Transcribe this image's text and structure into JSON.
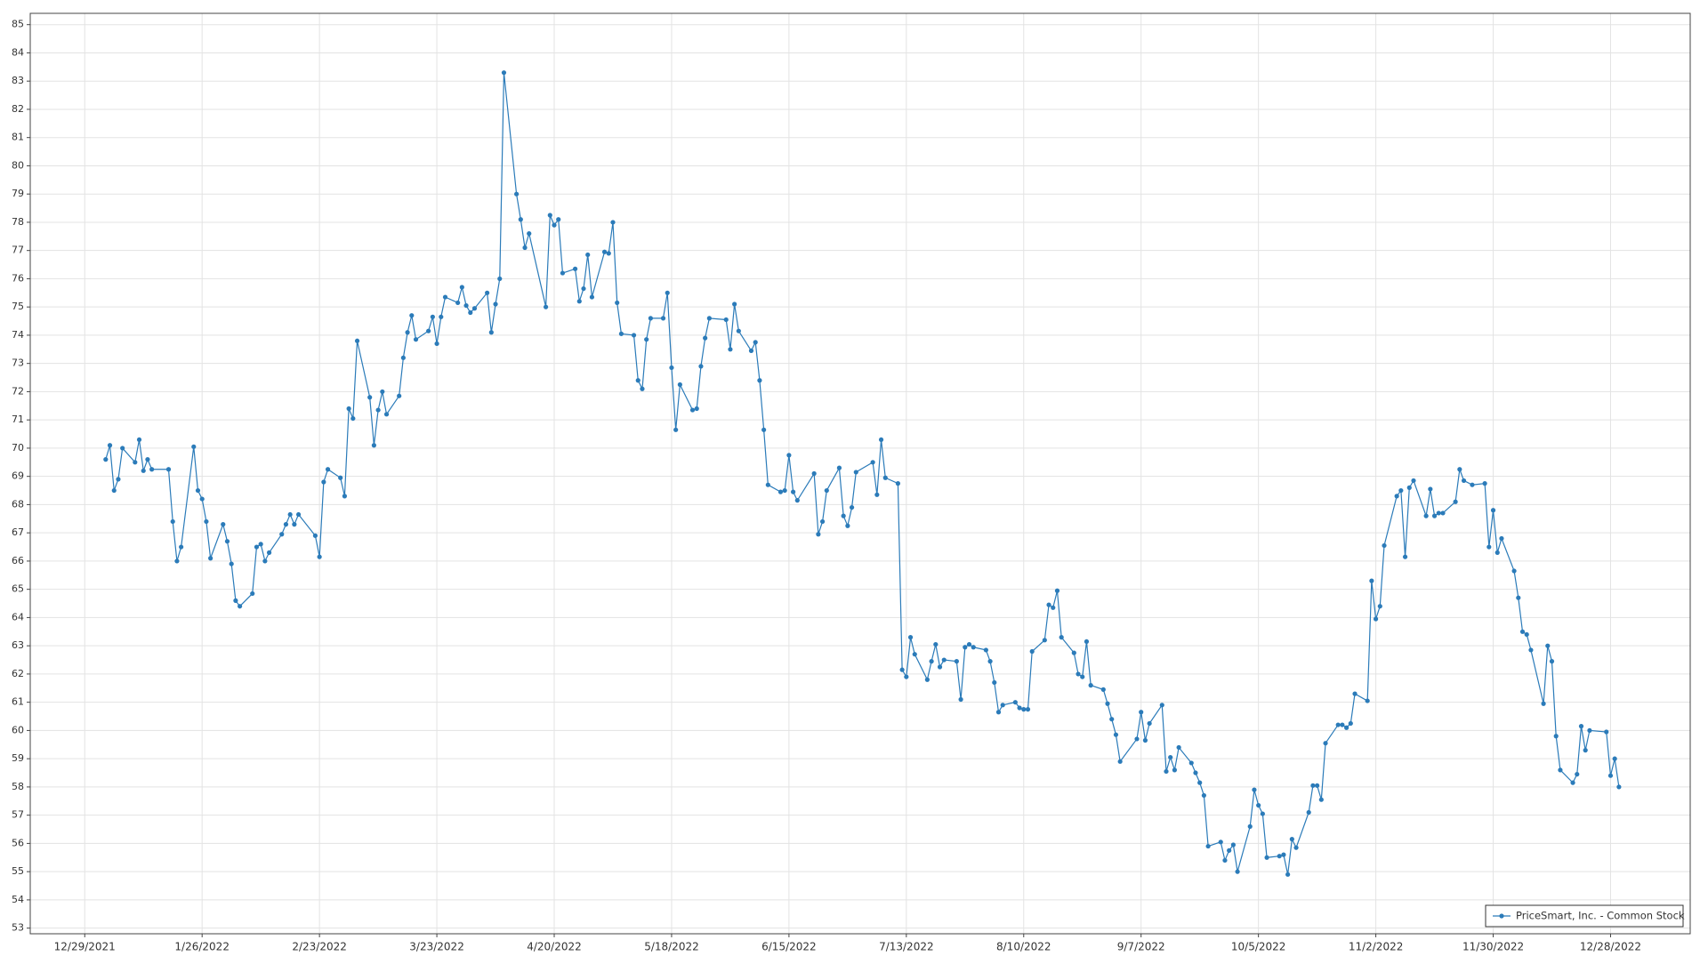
{
  "chart_data": {
    "type": "line",
    "x": [
      "1/3/2022",
      "1/4/2022",
      "1/5/2022",
      "1/6/2022",
      "1/7/2022",
      "1/10/2022",
      "1/11/2022",
      "1/12/2022",
      "1/13/2022",
      "1/14/2022",
      "1/18/2022",
      "1/19/2022",
      "1/20/2022",
      "1/21/2022",
      "1/24/2022",
      "1/25/2022",
      "1/26/2022",
      "1/27/2022",
      "1/28/2022",
      "1/31/2022",
      "2/1/2022",
      "2/2/2022",
      "2/3/2022",
      "2/4/2022",
      "2/7/2022",
      "2/8/2022",
      "2/9/2022",
      "2/10/2022",
      "2/11/2022",
      "2/14/2022",
      "2/15/2022",
      "2/16/2022",
      "2/17/2022",
      "2/18/2022",
      "2/22/2022",
      "2/23/2022",
      "2/24/2022",
      "2/25/2022",
      "2/28/2022",
      "3/1/2022",
      "3/2/2022",
      "3/3/2022",
      "3/4/2022",
      "3/7/2022",
      "3/8/2022",
      "3/9/2022",
      "3/10/2022",
      "3/11/2022",
      "3/14/2022",
      "3/15/2022",
      "3/16/2022",
      "3/17/2022",
      "3/18/2022",
      "3/21/2022",
      "3/22/2022",
      "3/23/2022",
      "3/24/2022",
      "3/25/2022",
      "3/28/2022",
      "3/29/2022",
      "3/30/2022",
      "3/31/2022",
      "4/1/2022",
      "4/4/2022",
      "4/5/2022",
      "4/6/2022",
      "4/7/2022",
      "4/8/2022",
      "4/11/2022",
      "4/12/2022",
      "4/13/2022",
      "4/14/2022",
      "4/18/2022",
      "4/19/2022",
      "4/20/2022",
      "4/21/2022",
      "4/22/2022",
      "4/25/2022",
      "4/26/2022",
      "4/27/2022",
      "4/28/2022",
      "4/29/2022",
      "5/2/2022",
      "5/3/2022",
      "5/4/2022",
      "5/5/2022",
      "5/6/2022",
      "5/9/2022",
      "5/10/2022",
      "5/11/2022",
      "5/12/2022",
      "5/13/2022",
      "5/16/2022",
      "5/17/2022",
      "5/18/2022",
      "5/19/2022",
      "5/20/2022",
      "5/23/2022",
      "5/24/2022",
      "5/25/2022",
      "5/26/2022",
      "5/27/2022",
      "5/31/2022",
      "6/1/2022",
      "6/2/2022",
      "6/3/2022",
      "6/6/2022",
      "6/7/2022",
      "6/8/2022",
      "6/9/2022",
      "6/10/2022",
      "6/13/2022",
      "6/14/2022",
      "6/15/2022",
      "6/16/2022",
      "6/17/2022",
      "6/21/2022",
      "6/22/2022",
      "6/23/2022",
      "6/24/2022",
      "6/27/2022",
      "6/28/2022",
      "6/29/2022",
      "6/30/2022",
      "7/1/2022",
      "7/5/2022",
      "7/6/2022",
      "7/7/2022",
      "7/8/2022",
      "7/11/2022",
      "7/12/2022",
      "7/13/2022",
      "7/14/2022",
      "7/15/2022",
      "7/18/2022",
      "7/19/2022",
      "7/20/2022",
      "7/21/2022",
      "7/22/2022",
      "7/25/2022",
      "7/26/2022",
      "7/27/2022",
      "7/28/2022",
      "7/29/2022",
      "8/1/2022",
      "8/2/2022",
      "8/3/2022",
      "8/4/2022",
      "8/5/2022",
      "8/8/2022",
      "8/9/2022",
      "8/10/2022",
      "8/11/2022",
      "8/12/2022",
      "8/15/2022",
      "8/16/2022",
      "8/17/2022",
      "8/18/2022",
      "8/19/2022",
      "8/22/2022",
      "8/23/2022",
      "8/24/2022",
      "8/25/2022",
      "8/26/2022",
      "8/29/2022",
      "8/30/2022",
      "8/31/2022",
      "9/1/2022",
      "9/2/2022",
      "9/6/2022",
      "9/7/2022",
      "9/8/2022",
      "9/9/2022",
      "9/12/2022",
      "9/13/2022",
      "9/14/2022",
      "9/15/2022",
      "9/16/2022",
      "9/19/2022",
      "9/20/2022",
      "9/21/2022",
      "9/22/2022",
      "9/23/2022",
      "9/26/2022",
      "9/27/2022",
      "9/28/2022",
      "9/29/2022",
      "9/30/2022",
      "10/3/2022",
      "10/4/2022",
      "10/5/2022",
      "10/6/2022",
      "10/7/2022",
      "10/10/2022",
      "10/11/2022",
      "10/12/2022",
      "10/13/2022",
      "10/14/2022",
      "10/17/2022",
      "10/18/2022",
      "10/19/2022",
      "10/20/2022",
      "10/21/2022",
      "10/24/2022",
      "10/25/2022",
      "10/26/2022",
      "10/27/2022",
      "10/28/2022",
      "10/31/2022",
      "11/1/2022",
      "11/2/2022",
      "11/3/2022",
      "11/4/2022",
      "11/7/2022",
      "11/8/2022",
      "11/9/2022",
      "11/10/2022",
      "11/11/2022",
      "11/14/2022",
      "11/15/2022",
      "11/16/2022",
      "11/17/2022",
      "11/18/2022",
      "11/21/2022",
      "11/22/2022",
      "11/23/2022",
      "11/25/2022",
      "11/28/2022",
      "11/29/2022",
      "11/30/2022",
      "12/1/2022",
      "12/2/2022",
      "12/5/2022",
      "12/6/2022",
      "12/7/2022",
      "12/8/2022",
      "12/9/2022",
      "12/12/2022",
      "12/13/2022",
      "12/14/2022",
      "12/15/2022",
      "12/16/2022",
      "12/19/2022",
      "12/20/2022",
      "12/21/2022",
      "12/22/2022",
      "12/23/2022",
      "12/27/2022",
      "12/28/2022",
      "12/29/2022",
      "12/30/2022"
    ],
    "series": [
      {
        "name": "PriceSmart, Inc. - Common Stock",
        "color": "#2b7bb9",
        "values": [
          69.6,
          70.1,
          68.5,
          68.9,
          70.0,
          69.5,
          70.3,
          69.2,
          69.6,
          69.25,
          69.25,
          67.4,
          66.0,
          66.5,
          70.05,
          68.5,
          68.2,
          67.4,
          66.1,
          67.3,
          66.7,
          65.9,
          64.6,
          64.4,
          64.85,
          66.5,
          66.6,
          66.0,
          66.3,
          66.95,
          67.3,
          67.65,
          67.3,
          67.65,
          66.9,
          66.15,
          68.8,
          69.25,
          68.95,
          68.3,
          71.4,
          71.05,
          73.8,
          71.8,
          70.1,
          71.35,
          72.0,
          71.2,
          71.85,
          73.2,
          74.1,
          74.7,
          73.85,
          74.15,
          74.65,
          73.7,
          74.65,
          75.35,
          75.15,
          75.7,
          75.05,
          74.8,
          74.95,
          75.5,
          74.1,
          75.1,
          76.0,
          83.3,
          79.0,
          78.1,
          77.1,
          77.6,
          75.0,
          78.25,
          77.9,
          78.1,
          76.2,
          76.35,
          75.2,
          75.65,
          76.85,
          75.35,
          76.95,
          76.9,
          78.0,
          75.15,
          74.05,
          74.0,
          72.4,
          72.1,
          73.85,
          74.6,
          74.6,
          75.5,
          72.85,
          70.65,
          72.25,
          71.35,
          71.4,
          72.9,
          73.9,
          74.6,
          74.55,
          73.5,
          75.1,
          74.15,
          73.45,
          73.75,
          72.4,
          70.65,
          68.7,
          68.45,
          68.5,
          69.75,
          68.45,
          68.15,
          69.1,
          66.95,
          67.4,
          68.5,
          69.3,
          67.6,
          67.25,
          67.9,
          69.15,
          69.5,
          68.35,
          70.3,
          68.95,
          68.75,
          62.15,
          61.9,
          63.3,
          62.7,
          61.8,
          62.45,
          63.05,
          62.25,
          62.5,
          62.45,
          61.1,
          62.95,
          63.05,
          62.95,
          62.85,
          62.45,
          61.7,
          60.65,
          60.9,
          61.0,
          60.8,
          60.75,
          60.75,
          62.8,
          63.2,
          64.45,
          64.35,
          64.95,
          63.3,
          62.75,
          62.0,
          61.9,
          63.15,
          61.6,
          61.45,
          60.95,
          60.4,
          59.85,
          58.9,
          59.7,
          60.65,
          59.65,
          60.25,
          60.9,
          58.55,
          59.05,
          58.6,
          59.4,
          58.85,
          58.5,
          58.15,
          57.7,
          55.9,
          56.05,
          55.4,
          55.75,
          55.95,
          55.0,
          56.6,
          57.9,
          57.35,
          57.05,
          55.5,
          55.55,
          55.6,
          54.9,
          56.15,
          55.85,
          57.1,
          58.05,
          58.05,
          57.55,
          59.55,
          60.2,
          60.2,
          60.1,
          60.25,
          61.3,
          61.05,
          65.3,
          63.95,
          64.4,
          66.55,
          68.3,
          68.5,
          66.15,
          68.6,
          68.85,
          67.6,
          68.55,
          67.6,
          67.7,
          67.7,
          68.1,
          69.25,
          68.85,
          68.7,
          68.75,
          66.5,
          67.8,
          66.3,
          66.8,
          65.65,
          64.7,
          63.5,
          63.4,
          62.85,
          60.95,
          63.0,
          62.45,
          59.8,
          58.6,
          58.15,
          58.45,
          60.15,
          59.3,
          60.0,
          59.95,
          58.4,
          59.0,
          58.0
        ]
      }
    ],
    "xlim": [
      "12/16/2021",
      "1/16/2023"
    ],
    "xticks": [
      "12/29/2021",
      "1/26/2022",
      "2/23/2022",
      "3/23/2022",
      "4/20/2022",
      "5/18/2022",
      "6/15/2022",
      "7/13/2022",
      "8/10/2022",
      "9/7/2022",
      "10/5/2022",
      "11/2/2022",
      "11/30/2022",
      "12/28/2022"
    ],
    "ylim": [
      52.8,
      85.4
    ],
    "yticks": [
      53,
      54,
      55,
      56,
      57,
      58,
      59,
      60,
      61,
      62,
      63,
      64,
      65,
      66,
      67,
      68,
      69,
      70,
      71,
      72,
      73,
      74,
      75,
      76,
      77,
      78,
      79,
      80,
      81,
      82,
      83,
      84,
      85
    ],
    "grid": true,
    "legend": "lower right"
  }
}
